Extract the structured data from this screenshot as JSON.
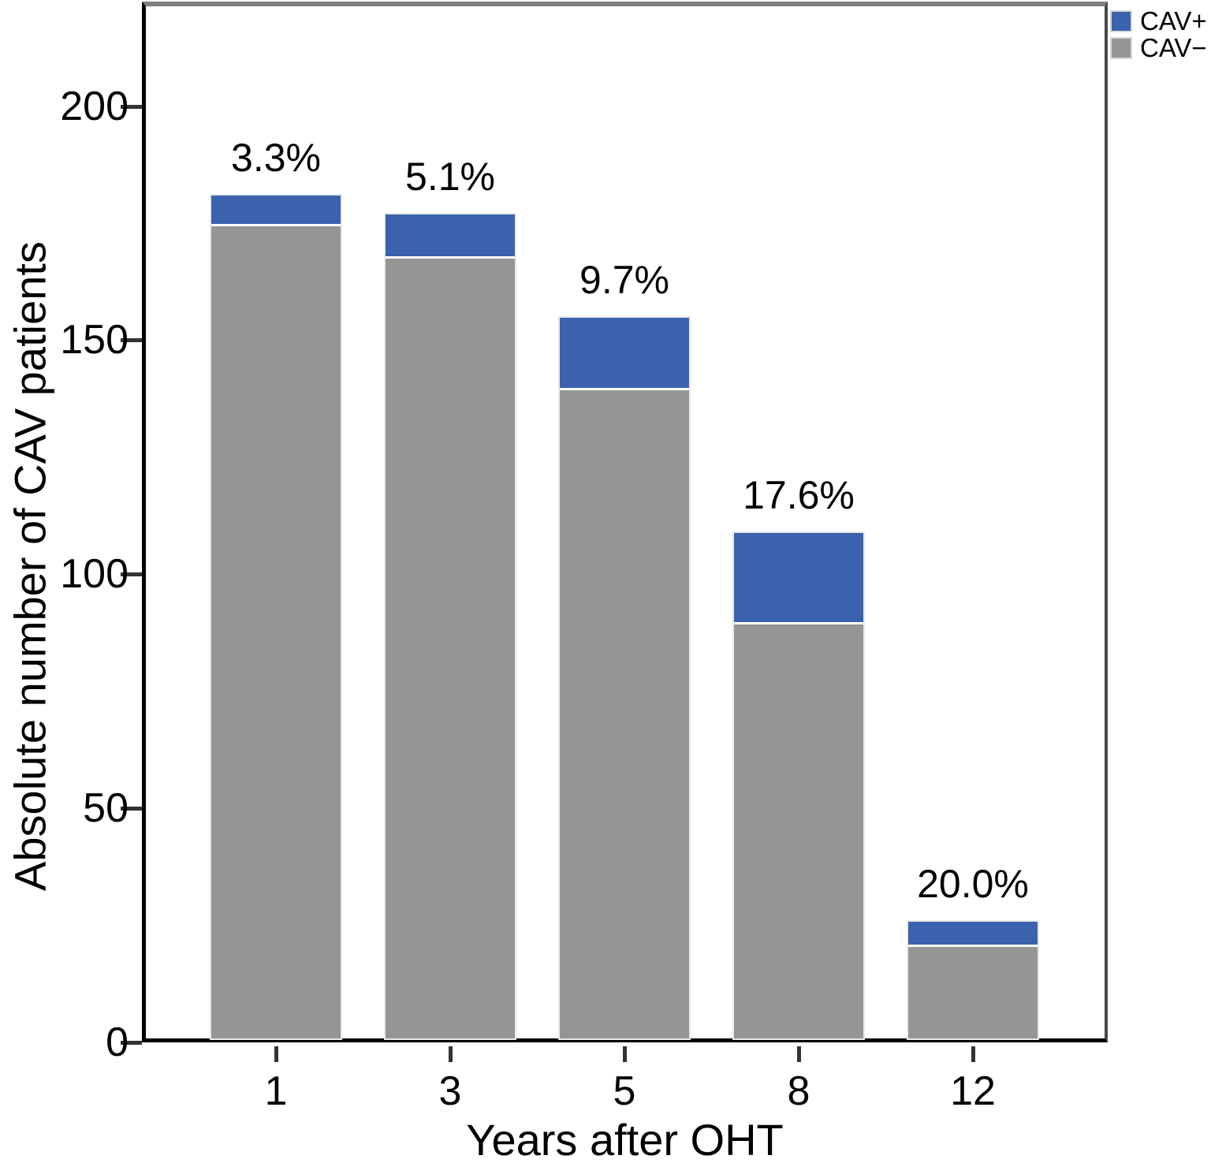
{
  "chart_data": {
    "type": "bar",
    "stacked": true,
    "title": "",
    "xlabel": "Years after OHT",
    "ylabel": "Absolute number of CAV patients",
    "categories": [
      "1",
      "3",
      "5",
      "8",
      "12"
    ],
    "series": [
      {
        "name": "CAV+",
        "color": "#3a62ad",
        "values": [
          6,
          9,
          15,
          19,
          5
        ]
      },
      {
        "name": "CAV−",
        "color": "#959595",
        "values": [
          174,
          167,
          139,
          89,
          20
        ]
      }
    ],
    "totals": [
      180,
      176,
      154,
      108,
      25
    ],
    "bar_labels": [
      "3.3%",
      "5.1%",
      "9.7%",
      "17.6%",
      "20.0%"
    ],
    "yticks": [
      0,
      50,
      100,
      150,
      200
    ],
    "ylim": [
      0,
      221
    ],
    "grid": false,
    "legend_position": "top-right"
  }
}
